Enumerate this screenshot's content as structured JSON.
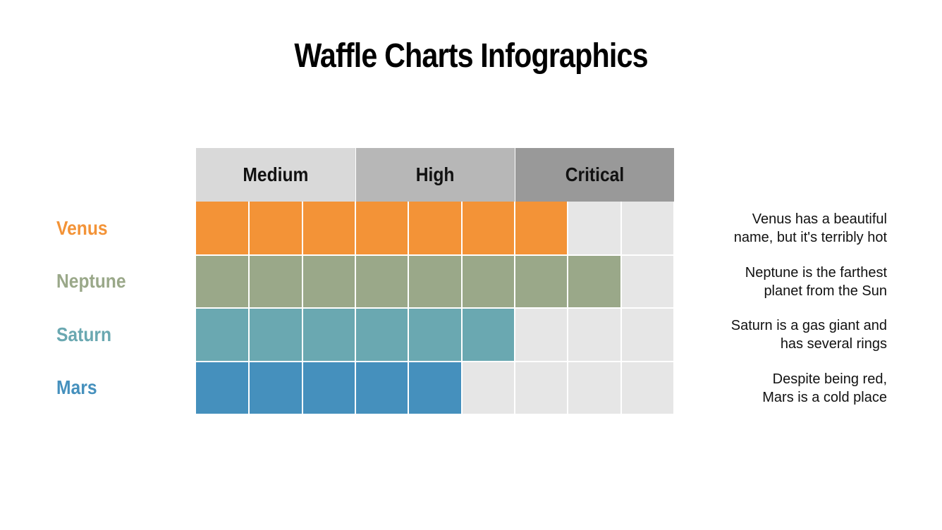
{
  "title": "Waffle Charts Infographics",
  "chart_data": {
    "type": "table",
    "columns": [
      {
        "label": "Medium",
        "color": "#d9d9d9"
      },
      {
        "label": "High",
        "color": "#b7b7b7"
      },
      {
        "label": "Critical",
        "color": "#999999"
      }
    ],
    "cells_per_row": 9,
    "empty_color": "#e6e6e6",
    "rows": [
      {
        "label": "Venus",
        "filled": 7,
        "color": "#f39337",
        "description": "Venus has a beautiful\nname, but it's terribly hot"
      },
      {
        "label": "Neptune",
        "filled": 8,
        "color": "#9aa889",
        "description": "Neptune is the farthest\nplanet from the Sun"
      },
      {
        "label": "Saturn",
        "filled": 6,
        "color": "#6aa8b1",
        "description": "Saturn is a gas giant and\nhas several rings"
      },
      {
        "label": "Mars",
        "filled": 5,
        "color": "#4590bd",
        "description": "Despite being red,\nMars is a cold place"
      }
    ]
  }
}
